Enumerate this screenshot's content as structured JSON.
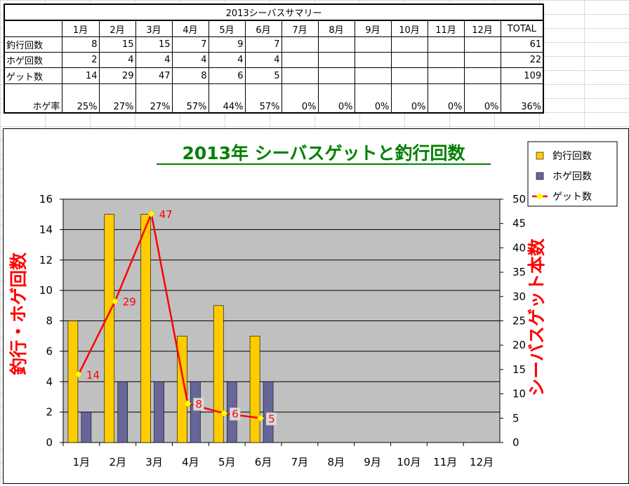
{
  "table": {
    "title": "2013シーバスサマリー",
    "headers": [
      "",
      "1月",
      "2月",
      "3月",
      "4月",
      "5月",
      "6月",
      "7月",
      "8月",
      "9月",
      "10月",
      "11月",
      "12月",
      "TOTAL"
    ],
    "rows": [
      {
        "label": "釣行回数",
        "cells": [
          "8",
          "15",
          "15",
          "7",
          "9",
          "7",
          "",
          "",
          "",
          "",
          "",
          ""
        ],
        "total": "61"
      },
      {
        "label": "ホゲ回数",
        "cells": [
          "2",
          "4",
          "4",
          "4",
          "4",
          "4",
          "",
          "",
          "",
          "",
          "",
          ""
        ],
        "total": "22"
      },
      {
        "label": "ゲット数",
        "cells": [
          "14",
          "29",
          "47",
          "8",
          "6",
          "5",
          "",
          "",
          "",
          "",
          "",
          ""
        ],
        "total": "109"
      },
      {
        "label": "ホゲ率",
        "cells": [
          "25%",
          "27%",
          "27%",
          "57%",
          "44%",
          "57%",
          "0%",
          "0%",
          "0%",
          "0%",
          "0%",
          "0%"
        ],
        "total": "36%"
      }
    ]
  },
  "chart_data": {
    "type": "bar",
    "title": "2013年 シーバスゲットと釣行回数",
    "categories": [
      "1月",
      "2月",
      "3月",
      "4月",
      "5月",
      "6月",
      "7月",
      "8月",
      "9月",
      "10月",
      "11月",
      "12月"
    ],
    "series": [
      {
        "name": "釣行回数",
        "type": "bar",
        "axis": "left",
        "color": "#FFCC00",
        "values": [
          8,
          15,
          15,
          7,
          9,
          7,
          null,
          null,
          null,
          null,
          null,
          null
        ]
      },
      {
        "name": "ホゲ回数",
        "type": "bar",
        "axis": "left",
        "color": "#666699",
        "values": [
          2,
          4,
          4,
          4,
          4,
          4,
          null,
          null,
          null,
          null,
          null,
          null
        ]
      },
      {
        "name": "ゲット数",
        "type": "line",
        "axis": "right",
        "color": "#FF0000",
        "marker_color": "#FFFF00",
        "values": [
          14,
          29,
          47,
          8,
          6,
          5,
          null,
          null,
          null,
          null,
          null,
          null
        ]
      }
    ],
    "ylabel": "釣行・ホゲ回数",
    "y2label": "シーバスゲット本数",
    "ylim": [
      0,
      16
    ],
    "y_ticks": [
      0,
      2,
      4,
      6,
      8,
      10,
      12,
      14,
      16
    ],
    "y2lim": [
      0,
      50
    ],
    "y2_ticks": [
      0,
      5,
      10,
      15,
      20,
      25,
      30,
      35,
      40,
      45,
      50
    ],
    "data_labels": [
      "14",
      "29",
      "47",
      "8",
      "6",
      "5"
    ],
    "grid": true,
    "legend_position": "top-right",
    "title_color": "#008000",
    "plot_bg": "#C0C0C0"
  }
}
